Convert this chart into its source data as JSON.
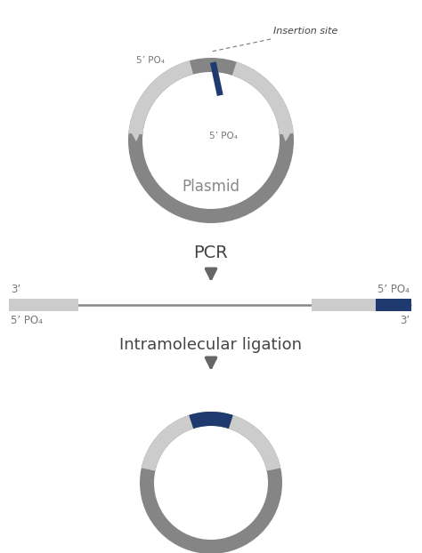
{
  "bg_color": "#ffffff",
  "ring_gray": "#858585",
  "light_gray": "#cccccc",
  "navy_blue": "#1e3a6e",
  "text_dark": "#444444",
  "text_light": "#777777",
  "arrow_gray": "#777777",
  "plasmid_label": "Plasmid",
  "insertion_label": "Insertion site",
  "pcr_label": "PCR",
  "ligation_label": "Intramolecular ligation",
  "lbl_5po4": "5’ PO₄",
  "lbl_3p": "3’",
  "fig_w": 4.74,
  "fig_h": 6.22,
  "dpi": 100
}
